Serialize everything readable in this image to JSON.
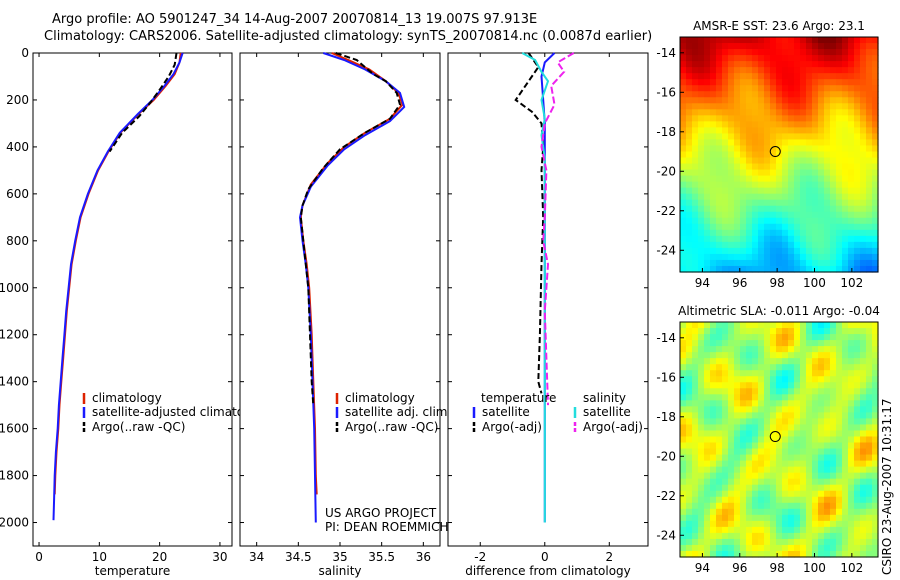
{
  "title_line1": "Argo profile: AO 5901247_34 14-Aug-2007 20070814_13 19.007S 97.913E",
  "title_line2": "Climatology: CARS2006. Satellite-adjusted climatology: synTS_20070814.nc (0.0087d earlier)",
  "credit": "CSIRO 23-Aug-2007 10:31:17",
  "colors": {
    "red": "#dd2200",
    "blue": "#1a1aff",
    "black": "#000000",
    "cyan": "#22dddd",
    "magenta": "#ee22ee"
  },
  "chart_data": [
    {
      "type": "line",
      "xlabel": "temperature",
      "ylabel": "",
      "xlim": [
        -1,
        32
      ],
      "ylim": [
        0,
        2100
      ],
      "y_reversed": true,
      "xticks": [
        0,
        10,
        20,
        30
      ],
      "yticks": [
        0,
        200,
        400,
        600,
        800,
        1000,
        1200,
        1400,
        1600,
        1800,
        2000
      ],
      "legend": [
        "climatology",
        "satellite-adjusted climatology",
        "Argo(..raw -QC)"
      ],
      "series": [
        {
          "name": "climatology",
          "color": "#dd2200",
          "dash": "",
          "points": [
            [
              23.5,
              0
            ],
            [
              23.3,
              40
            ],
            [
              22.5,
              90
            ],
            [
              21,
              140
            ],
            [
              19,
              200
            ],
            [
              16.5,
              260
            ],
            [
              13.5,
              340
            ],
            [
              11.5,
              420
            ],
            [
              9.8,
              500
            ],
            [
              8.2,
              600
            ],
            [
              6.9,
              700
            ],
            [
              6.1,
              800
            ],
            [
              5.4,
              900
            ],
            [
              5,
              1000
            ],
            [
              4.6,
              1100
            ],
            [
              4.3,
              1200
            ],
            [
              4,
              1300
            ],
            [
              3.7,
              1400
            ],
            [
              3.4,
              1500
            ],
            [
              3.2,
              1600
            ],
            [
              2.9,
              1700
            ],
            [
              2.7,
              1800
            ],
            [
              2.6,
              1880
            ]
          ]
        },
        {
          "name": "satellite-adjusted climatology",
          "color": "#1a1aff",
          "dash": "",
          "points": [
            [
              23.8,
              0
            ],
            [
              23.3,
              40
            ],
            [
              22.3,
              90
            ],
            [
              20.8,
              140
            ],
            [
              18.8,
              200
            ],
            [
              16.4,
              260
            ],
            [
              13.4,
              340
            ],
            [
              11.4,
              420
            ],
            [
              9.7,
              500
            ],
            [
              8.1,
              600
            ],
            [
              6.8,
              700
            ],
            [
              6.0,
              800
            ],
            [
              5.3,
              900
            ],
            [
              4.9,
              1000
            ],
            [
              4.5,
              1100
            ],
            [
              4.2,
              1200
            ],
            [
              3.9,
              1300
            ],
            [
              3.6,
              1400
            ],
            [
              3.3,
              1500
            ],
            [
              3.1,
              1600
            ],
            [
              2.8,
              1700
            ],
            [
              2.6,
              1800
            ],
            [
              2.5,
              1900
            ],
            [
              2.4,
              1990
            ]
          ]
        },
        {
          "name": "Argo(..raw -QC)",
          "color": "#000000",
          "dash": "6,3",
          "points": [
            [
              22.8,
              0
            ],
            [
              22.5,
              50
            ],
            [
              21.5,
              100
            ],
            [
              20.2,
              150
            ],
            [
              18.5,
              210
            ],
            [
              16.6,
              270
            ],
            [
              13.8,
              340
            ],
            [
              11.7,
              420
            ]
          ]
        }
      ]
    },
    {
      "type": "line",
      "xlabel": "salinity",
      "ylabel": "",
      "xlim": [
        33.8,
        36.2
      ],
      "ylim": [
        0,
        2100
      ],
      "y_reversed": true,
      "xticks": [
        34,
        34.5,
        35,
        35.5,
        36
      ],
      "legend": [
        "climatology",
        "satellite adj. clim.",
        "Argo(..raw -QC)"
      ],
      "annotation_line1": "US ARGO PROJECT",
      "annotation_line2": "PI: DEAN ROEMMICH",
      "series": [
        {
          "name": "climatology",
          "color": "#dd2200",
          "dash": "",
          "points": [
            [
              34.9,
              0
            ],
            [
              35.1,
              30
            ],
            [
              35.35,
              70
            ],
            [
              35.55,
              120
            ],
            [
              35.7,
              170
            ],
            [
              35.75,
              220
            ],
            [
              35.6,
              280
            ],
            [
              35.3,
              340
            ],
            [
              35.05,
              400
            ],
            [
              34.85,
              470
            ],
            [
              34.65,
              560
            ],
            [
              34.55,
              650
            ],
            [
              34.53,
              700
            ],
            [
              34.56,
              800
            ],
            [
              34.6,
              900
            ],
            [
              34.63,
              1000
            ],
            [
              34.66,
              1200
            ],
            [
              34.68,
              1400
            ],
            [
              34.7,
              1600
            ],
            [
              34.71,
              1800
            ],
            [
              34.72,
              1880
            ]
          ]
        },
        {
          "name": "satellite adj. clim.",
          "color": "#1a1aff",
          "dash": "",
          "points": [
            [
              34.8,
              0
            ],
            [
              35.05,
              30
            ],
            [
              35.3,
              70
            ],
            [
              35.55,
              120
            ],
            [
              35.72,
              170
            ],
            [
              35.77,
              230
            ],
            [
              35.6,
              290
            ],
            [
              35.3,
              350
            ],
            [
              35.05,
              410
            ],
            [
              34.85,
              480
            ],
            [
              34.65,
              570
            ],
            [
              34.55,
              650
            ],
            [
              34.52,
              700
            ],
            [
              34.55,
              800
            ],
            [
              34.59,
              900
            ],
            [
              34.62,
              1000
            ],
            [
              34.65,
              1200
            ],
            [
              34.67,
              1400
            ],
            [
              34.69,
              1600
            ],
            [
              34.7,
              1800
            ],
            [
              34.71,
              2000
            ]
          ]
        },
        {
          "name": "Argo(..raw -QC)",
          "color": "#000000",
          "dash": "6,3",
          "points": [
            [
              34.95,
              0
            ],
            [
              35.2,
              30
            ],
            [
              35.3,
              60
            ],
            [
              35.4,
              90
            ],
            [
              35.55,
              120
            ],
            [
              35.68,
              170
            ],
            [
              35.72,
              220
            ],
            [
              35.6,
              280
            ],
            [
              35.3,
              340
            ],
            [
              35.0,
              410
            ],
            [
              34.8,
              490
            ],
            [
              34.62,
              580
            ],
            [
              34.55,
              650
            ],
            [
              34.53,
              700
            ],
            [
              34.56,
              800
            ],
            [
              34.59,
              900
            ],
            [
              34.62,
              1000
            ],
            [
              34.64,
              1200
            ],
            [
              34.66,
              1400
            ],
            [
              34.68,
              1500
            ]
          ]
        }
      ]
    },
    {
      "type": "line",
      "xlabel": "difference from climatology",
      "ylabel": "",
      "xlim": [
        -3,
        3.2
      ],
      "ylim": [
        0,
        2100
      ],
      "y_reversed": true,
      "xticks": [
        -2,
        0,
        2
      ],
      "legend_left_title": "temperature",
      "legend_left": [
        "satellite",
        "Argo(-adj)"
      ],
      "legend_right_title": "salinity",
      "legend_right": [
        "satellite",
        "Argo(-adj)"
      ],
      "series": [
        {
          "name": "temperature satellite",
          "color": "#1a1aff",
          "dash": "",
          "points": [
            [
              0.3,
              0
            ],
            [
              0,
              40
            ],
            [
              -0.1,
              100
            ],
            [
              -0.05,
              200
            ],
            [
              0,
              300
            ],
            [
              0,
              500
            ],
            [
              0,
              800
            ],
            [
              0,
              1200
            ],
            [
              0,
              1600
            ],
            [
              0,
              2000
            ]
          ]
        },
        {
          "name": "temperature Argo(-adj)",
          "color": "#000000",
          "dash": "6,3",
          "points": [
            [
              -0.5,
              0
            ],
            [
              -0.2,
              60
            ],
            [
              -0.9,
              200
            ],
            [
              -0.4,
              250
            ],
            [
              -0.1,
              300
            ],
            [
              -0.05,
              400
            ],
            [
              -0.1,
              500
            ],
            [
              -0.05,
              700
            ],
            [
              -0.1,
              900
            ],
            [
              -0.15,
              1200
            ],
            [
              -0.2,
              1400
            ],
            [
              -0.1,
              1450
            ]
          ]
        },
        {
          "name": "salinity satellite",
          "color": "#22dddd",
          "dash": "",
          "points": [
            [
              -0.7,
              0
            ],
            [
              -0.3,
              30
            ],
            [
              -0.1,
              80
            ],
            [
              0.1,
              120
            ],
            [
              -0.1,
              200
            ],
            [
              0,
              280
            ],
            [
              -0.1,
              350
            ],
            [
              0,
              450
            ],
            [
              0,
              600
            ],
            [
              0,
              800
            ],
            [
              0,
              1000
            ],
            [
              0,
              1400
            ],
            [
              0,
              1700
            ],
            [
              0,
              2000
            ]
          ]
        },
        {
          "name": "salinity Argo(-adj)",
          "color": "#ee22ee",
          "dash": "7,3",
          "points": [
            [
              0.9,
              0
            ],
            [
              0.4,
              40
            ],
            [
              0.6,
              80
            ],
            [
              0.2,
              140
            ],
            [
              0.3,
              220
            ],
            [
              0,
              300
            ],
            [
              -0.1,
              400
            ],
            [
              0.05,
              500
            ],
            [
              0,
              700
            ],
            [
              -0.05,
              800
            ],
            [
              0.1,
              900
            ],
            [
              0,
              1100
            ],
            [
              0.05,
              1300
            ],
            [
              0.1,
              1500
            ]
          ]
        }
      ]
    },
    {
      "type": "heatmap",
      "title": "AMSR-E SST: 23.6  Argo: 23.1",
      "xlim": [
        92.8,
        103.4
      ],
      "ylim": [
        -25.1,
        -13.2
      ],
      "xticks": [
        94,
        96,
        98,
        100,
        102
      ],
      "yticks": [
        -14,
        -16,
        -18,
        -20,
        -22,
        -24
      ],
      "marker": [
        97.9,
        -19.0
      ],
      "colormap": "jet"
    },
    {
      "type": "heatmap",
      "title": "Altimetric SLA: -0.011  Argo: -0.04",
      "xlim": [
        92.8,
        103.4
      ],
      "ylim": [
        -25.1,
        -13.2
      ],
      "xticks": [
        94,
        96,
        98,
        100,
        102
      ],
      "yticks": [
        -14,
        -16,
        -18,
        -20,
        -22,
        -24
      ],
      "marker": [
        97.9,
        -19.0
      ],
      "colormap": "jet"
    }
  ]
}
